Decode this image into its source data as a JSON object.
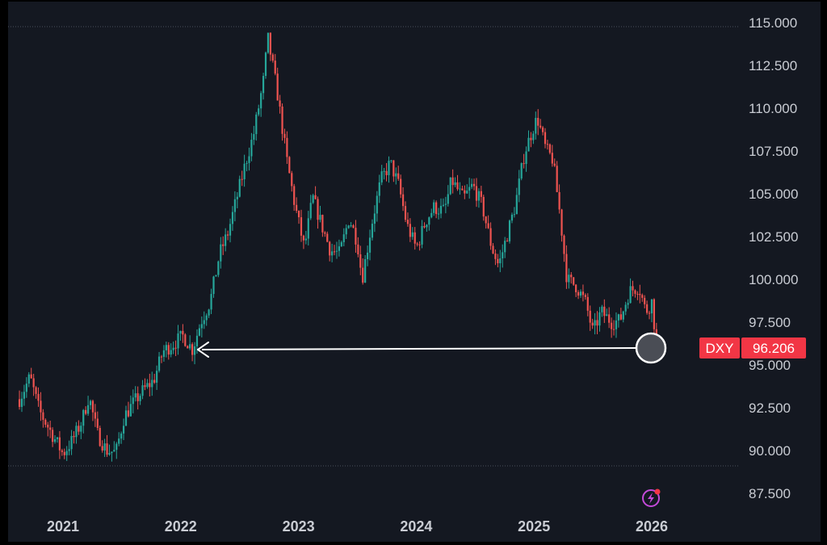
{
  "chart_data": {
    "type": "candlestick",
    "symbol": "DXY",
    "last_value": "96.206",
    "y_ticks": [
      "115.000",
      "112.500",
      "110.000",
      "107.500",
      "105.000",
      "102.500",
      "100.000",
      "97.500",
      "95.000",
      "92.500",
      "90.000",
      "87.500"
    ],
    "x_ticks": [
      "2021",
      "2022",
      "2023",
      "2024",
      "2025",
      "2026"
    ],
    "ylim": [
      87.5,
      115.0
    ],
    "colors": {
      "up": "#26a69a",
      "down": "#ef5350",
      "badge": "#f23645",
      "background": "#141821",
      "arrow": "#ffffff"
    },
    "series": [
      {
        "values": [
          [
            2020.63,
            93.0
          ],
          [
            2020.72,
            94.3
          ],
          [
            2020.8,
            92.3
          ],
          [
            2020.92,
            90.8
          ],
          [
            2021.0,
            89.8
          ],
          [
            2021.08,
            90.6
          ],
          [
            2021.16,
            91.7
          ],
          [
            2021.22,
            93.2
          ],
          [
            2021.29,
            91.0
          ],
          [
            2021.37,
            90.0
          ],
          [
            2021.45,
            89.9
          ],
          [
            2021.52,
            92.0
          ],
          [
            2021.6,
            92.8
          ],
          [
            2021.68,
            93.5
          ],
          [
            2021.77,
            94.1
          ],
          [
            2021.85,
            95.8
          ],
          [
            2021.93,
            96.2
          ],
          [
            2022.02,
            96.7
          ],
          [
            2022.1,
            95.9
          ],
          [
            2022.17,
            97.5
          ],
          [
            2022.25,
            98.7
          ],
          [
            2022.33,
            101.5
          ],
          [
            2022.4,
            102.7
          ],
          [
            2022.47,
            104.6
          ],
          [
            2022.55,
            106.8
          ],
          [
            2022.62,
            108.5
          ],
          [
            2022.7,
            111.5
          ],
          [
            2022.74,
            114.1
          ],
          [
            2022.82,
            110.9
          ],
          [
            2022.9,
            107.0
          ],
          [
            2022.97,
            104.3
          ],
          [
            2023.05,
            101.8
          ],
          [
            2023.12,
            104.8
          ],
          [
            2023.2,
            103.1
          ],
          [
            2023.27,
            101.7
          ],
          [
            2023.35,
            101.5
          ],
          [
            2023.43,
            103.6
          ],
          [
            2023.5,
            102.2
          ],
          [
            2023.54,
            100.0
          ],
          [
            2023.62,
            103.2
          ],
          [
            2023.7,
            105.8
          ],
          [
            2023.78,
            106.8
          ],
          [
            2023.85,
            105.5
          ],
          [
            2023.92,
            103.2
          ],
          [
            2024.0,
            101.8
          ],
          [
            2024.08,
            103.4
          ],
          [
            2024.15,
            104.2
          ],
          [
            2024.24,
            104.0
          ],
          [
            2024.3,
            105.8
          ],
          [
            2024.4,
            104.7
          ],
          [
            2024.48,
            105.5
          ],
          [
            2024.56,
            104.3
          ],
          [
            2024.64,
            101.9
          ],
          [
            2024.7,
            100.8
          ],
          [
            2024.76,
            102.3
          ],
          [
            2024.84,
            104.3
          ],
          [
            2024.92,
            107.4
          ],
          [
            2025.0,
            109.0
          ],
          [
            2025.03,
            109.4
          ],
          [
            2025.1,
            107.6
          ],
          [
            2025.16,
            107.0
          ],
          [
            2025.22,
            103.8
          ],
          [
            2025.28,
            100.0
          ],
          [
            2025.36,
            99.6
          ],
          [
            2025.44,
            98.6
          ],
          [
            2025.5,
            96.9
          ],
          [
            2025.57,
            98.1
          ],
          [
            2025.66,
            97.5
          ],
          [
            2025.73,
            97.6
          ],
          [
            2025.81,
            99.3
          ],
          [
            2025.89,
            99.6
          ],
          [
            2025.95,
            98.1
          ],
          [
            2026.0,
            98.7
          ],
          [
            2026.04,
            96.2
          ]
        ]
      }
    ]
  }
}
